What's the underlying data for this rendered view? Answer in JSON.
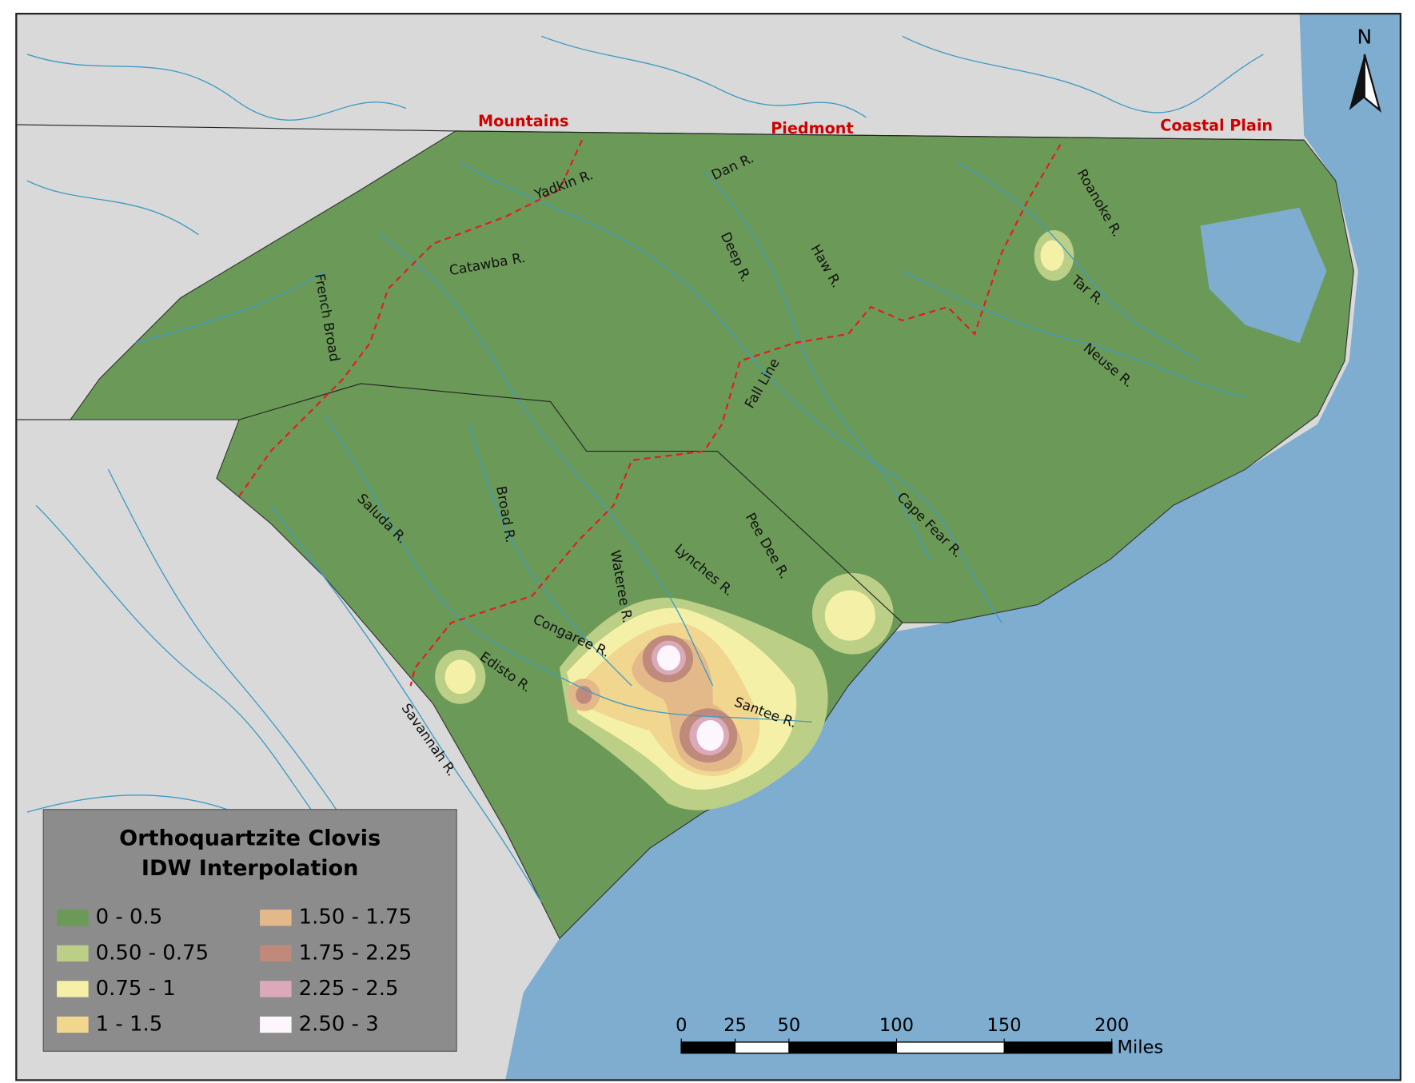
{
  "map": {
    "title": [
      "Orthoquartzite Clovis",
      "IDW Interpolation"
    ],
    "regions": [
      "Mountains",
      "Piedmont",
      "Coastal Plain"
    ],
    "rivers": [
      "Yadkin R.",
      "Dan R.",
      "Catawba R.",
      "French Broad",
      "Deep R.",
      "Haw R.",
      "Roanoke R.",
      "Tar R.",
      "Neuse R.",
      "Saluda R.",
      "Broad R.",
      "Wateree R.",
      "Lynches R.",
      "Pee Dee R.",
      "Cape Fear R.",
      "Congaree R.",
      "Edisto R.",
      "Savannah R.",
      "Santee R."
    ],
    "fall_line": "Fall Line",
    "north": "N"
  },
  "legend": {
    "classes": [
      {
        "label": "0 - 0.5",
        "color": "#6b9a58"
      },
      {
        "label": "0.50 - 0.75",
        "color": "#bccf86"
      },
      {
        "label": "0.75 - 1",
        "color": "#f4f0a8"
      },
      {
        "label": "1 - 1.5",
        "color": "#f1d690"
      },
      {
        "label": "1.50 - 1.75",
        "color": "#e3b98a"
      },
      {
        "label": "1.75 - 2.25",
        "color": "#bf8a7b"
      },
      {
        "label": "2.25 - 2.5",
        "color": "#dba9b9"
      },
      {
        "label": "2.50 - 3",
        "color": "#fdf6fd"
      }
    ]
  },
  "scale_bar": {
    "ticks": [
      0,
      25,
      50,
      100,
      150,
      200
    ],
    "unit": "Miles"
  }
}
